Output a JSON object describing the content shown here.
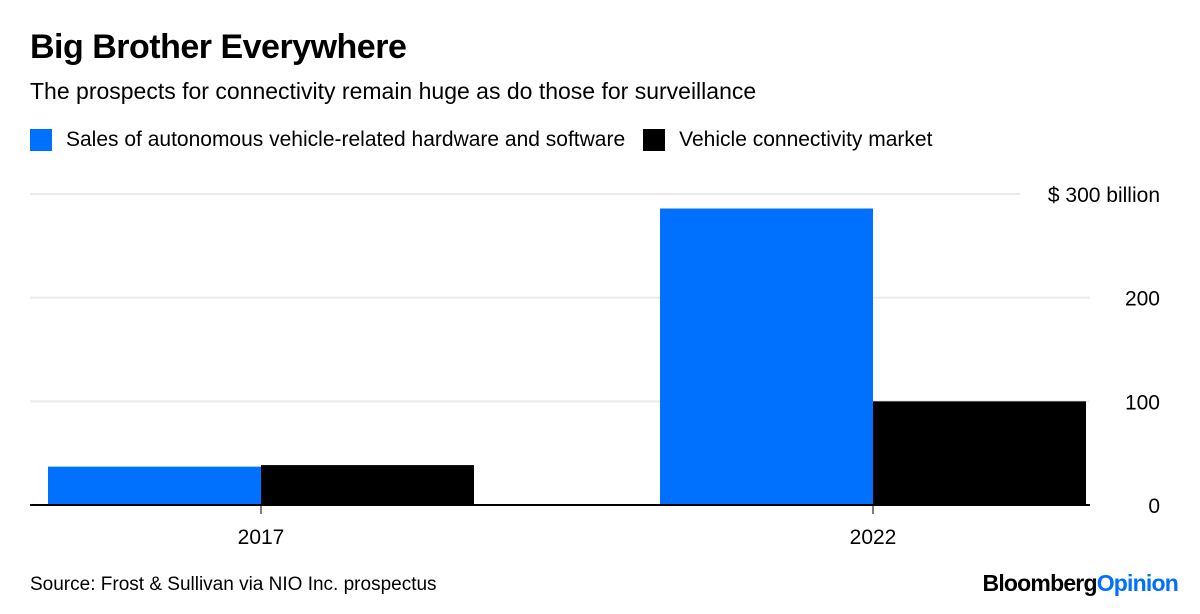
{
  "title": "Big Brother Everywhere",
  "subtitle": "The prospects for connectivity remain huge as do those for surveillance",
  "source": "Source: Frost & Sullivan via NIO Inc. prospectus",
  "brand": {
    "part1": "Bloomberg",
    "part2": "Opinion"
  },
  "chart_data": {
    "type": "bar",
    "categories": [
      "2017",
      "2022"
    ],
    "series": [
      {
        "name": "Sales of autonomous vehicle-related hardware and software",
        "color": "#0070ff",
        "values": [
          37,
          286
        ]
      },
      {
        "name": "Vehicle connectivity market",
        "color": "#000000",
        "values": [
          38.5,
          100
        ]
      }
    ],
    "ylim": [
      0,
      300
    ],
    "yticks": [
      0,
      100,
      200,
      300
    ],
    "ytick_labels": [
      "0",
      "100",
      "200",
      "$ 300 billion"
    ],
    "grid": true,
    "legend_position": "top-left",
    "xlabel": "",
    "ylabel": ""
  }
}
